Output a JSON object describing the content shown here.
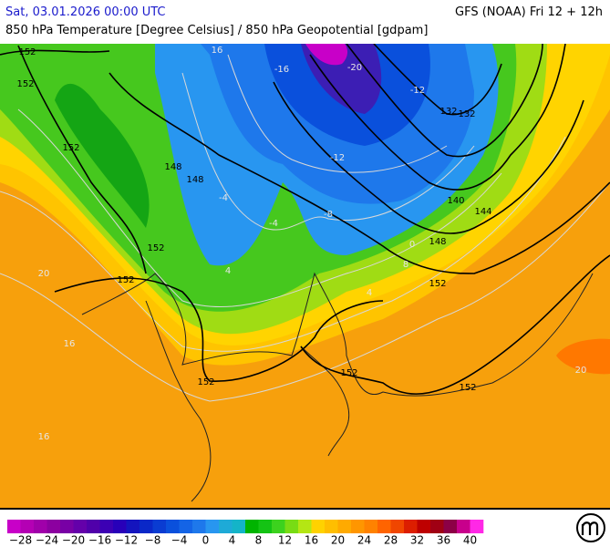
{
  "header": {
    "valid_time": "Sat, 03.01.2026 00:00 UTC",
    "model_run": "GFS (NOAA) Fri 12 + 12h",
    "subtitle": "850 hPa Temperature [Degree Celsius] / 850 hPa Geopotential [gdpam]"
  },
  "map": {
    "contour_labels": [
      "152",
      "152",
      "152",
      "148",
      "152",
      "152",
      "152",
      "152",
      "152",
      "148",
      "144",
      "140",
      "132",
      "132",
      "148",
      "152"
    ],
    "isotherm_labels": [
      "-12",
      "-8",
      "-4",
      "-4",
      "0",
      "4",
      "4",
      "8",
      "16",
      "16",
      "20",
      "-16",
      "-12",
      "-20",
      "16",
      "20"
    ]
  },
  "colorbar": {
    "labels": [
      "−28",
      "−24",
      "−20",
      "−16",
      "−12",
      "−8",
      "−4",
      "0",
      "4",
      "8",
      "12",
      "16",
      "20",
      "24",
      "28",
      "32",
      "36",
      "40"
    ],
    "colors": [
      "#c800c8",
      "#b400b4",
      "#a000aa",
      "#8c00a0",
      "#7800a5",
      "#6400aa",
      "#5000aa",
      "#3c00b4",
      "#2800b9",
      "#1414be",
      "#0a28c8",
      "#0a3cd2",
      "#0a50dc",
      "#1464e6",
      "#1e78eb",
      "#2896f0",
      "#1eaad7",
      "#14b4c8",
      "#00b400",
      "#14c314",
      "#3cd21e",
      "#78dc14",
      "#b4e614",
      "#ffd200",
      "#ffbe00",
      "#ffaa00",
      "#ff9600",
      "#ff8200",
      "#ff6400",
      "#f04600",
      "#dc1e00",
      "#be0000",
      "#a00014",
      "#8c0046",
      "#c8008c",
      "#ff28e6"
    ]
  }
}
